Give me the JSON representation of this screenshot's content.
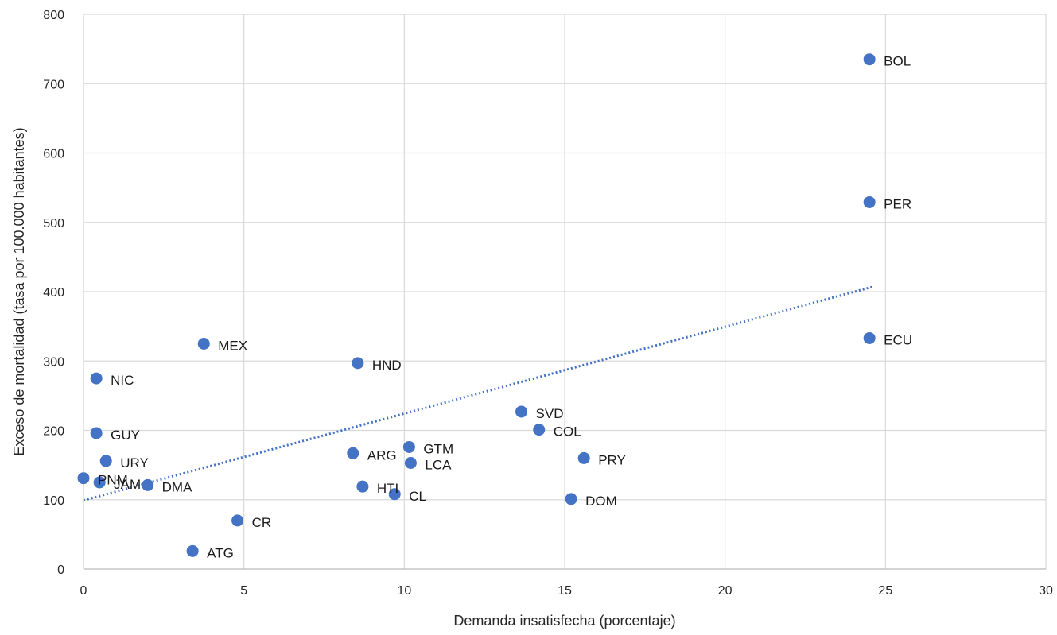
{
  "chart_data": {
    "type": "scatter",
    "title": "",
    "xlabel": "Demanda insatisfecha (porcentaje)",
    "ylabel": "Exceso de mortalidad (tasa por 100.000 habitantes)",
    "xlim": [
      0,
      30
    ],
    "ylim": [
      0,
      800
    ],
    "x_ticks": [
      "0",
      "5",
      "10",
      "15",
      "20",
      "25",
      "30"
    ],
    "y_ticks": [
      "0",
      "100",
      "200",
      "300",
      "400",
      "500",
      "600",
      "700",
      "800"
    ],
    "grid": true,
    "legend": "none",
    "point_color": "#4472c4",
    "trendline": {
      "type": "linear",
      "x": [
        0,
        24.6
      ],
      "y": [
        99,
        407
      ],
      "style": "dotted",
      "color": "#4472c4"
    },
    "points": [
      {
        "label": "BOL",
        "x": 24.5,
        "y": 735
      },
      {
        "label": "PER",
        "x": 24.5,
        "y": 529
      },
      {
        "label": "ECU",
        "x": 24.5,
        "y": 333
      },
      {
        "label": "MEX",
        "x": 3.75,
        "y": 325
      },
      {
        "label": "HND",
        "x": 8.55,
        "y": 297
      },
      {
        "label": "NIC",
        "x": 0.4,
        "y": 275
      },
      {
        "label": "SVD",
        "x": 13.65,
        "y": 227
      },
      {
        "label": "COL",
        "x": 14.2,
        "y": 201
      },
      {
        "label": "GUY",
        "x": 0.4,
        "y": 196
      },
      {
        "label": "GTM",
        "x": 10.15,
        "y": 176
      },
      {
        "label": "ARG",
        "x": 8.4,
        "y": 167
      },
      {
        "label": "PRY",
        "x": 15.6,
        "y": 160
      },
      {
        "label": "URY",
        "x": 0.7,
        "y": 156
      },
      {
        "label": "LCA",
        "x": 10.2,
        "y": 153
      },
      {
        "label": "PNM",
        "x": 0.0,
        "y": 131
      },
      {
        "label": "JAM",
        "x": 0.5,
        "y": 125
      },
      {
        "label": "DMA",
        "x": 2.0,
        "y": 121
      },
      {
        "label": "HTI",
        "x": 8.7,
        "y": 119
      },
      {
        "label": "CL",
        "x": 9.7,
        "y": 108
      },
      {
        "label": "DOM",
        "x": 15.2,
        "y": 101
      },
      {
        "label": "CR",
        "x": 4.8,
        "y": 70
      },
      {
        "label": "ATG",
        "x": 3.4,
        "y": 26
      }
    ]
  }
}
